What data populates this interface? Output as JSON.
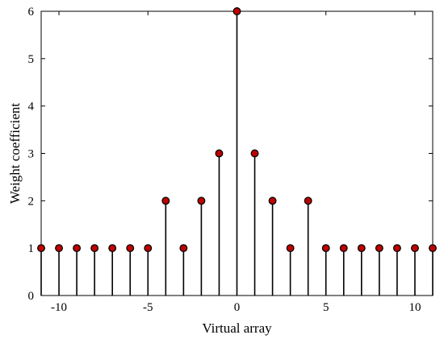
{
  "chart_data": {
    "type": "stem",
    "title": "",
    "xlabel": "Virtual array",
    "ylabel": "Weight coefficient",
    "xlim": [
      -11,
      11
    ],
    "ylim": [
      0,
      6
    ],
    "xticks": [
      -10,
      -5,
      0,
      5,
      10
    ],
    "yticks": [
      0,
      1,
      2,
      3,
      4,
      5,
      6
    ],
    "grid": false,
    "marker_color": "#c00000",
    "series": [
      {
        "x": [
          -11,
          -10,
          -9,
          -8,
          -7,
          -6,
          -5,
          -4,
          -3,
          -2,
          -1,
          0,
          1,
          2,
          3,
          4,
          5,
          6,
          7,
          8,
          9,
          10,
          11
        ],
        "y": [
          1,
          1,
          1,
          1,
          1,
          1,
          1,
          2,
          1,
          2,
          3,
          6,
          3,
          2,
          1,
          2,
          1,
          1,
          1,
          1,
          1,
          1,
          1
        ]
      }
    ]
  }
}
